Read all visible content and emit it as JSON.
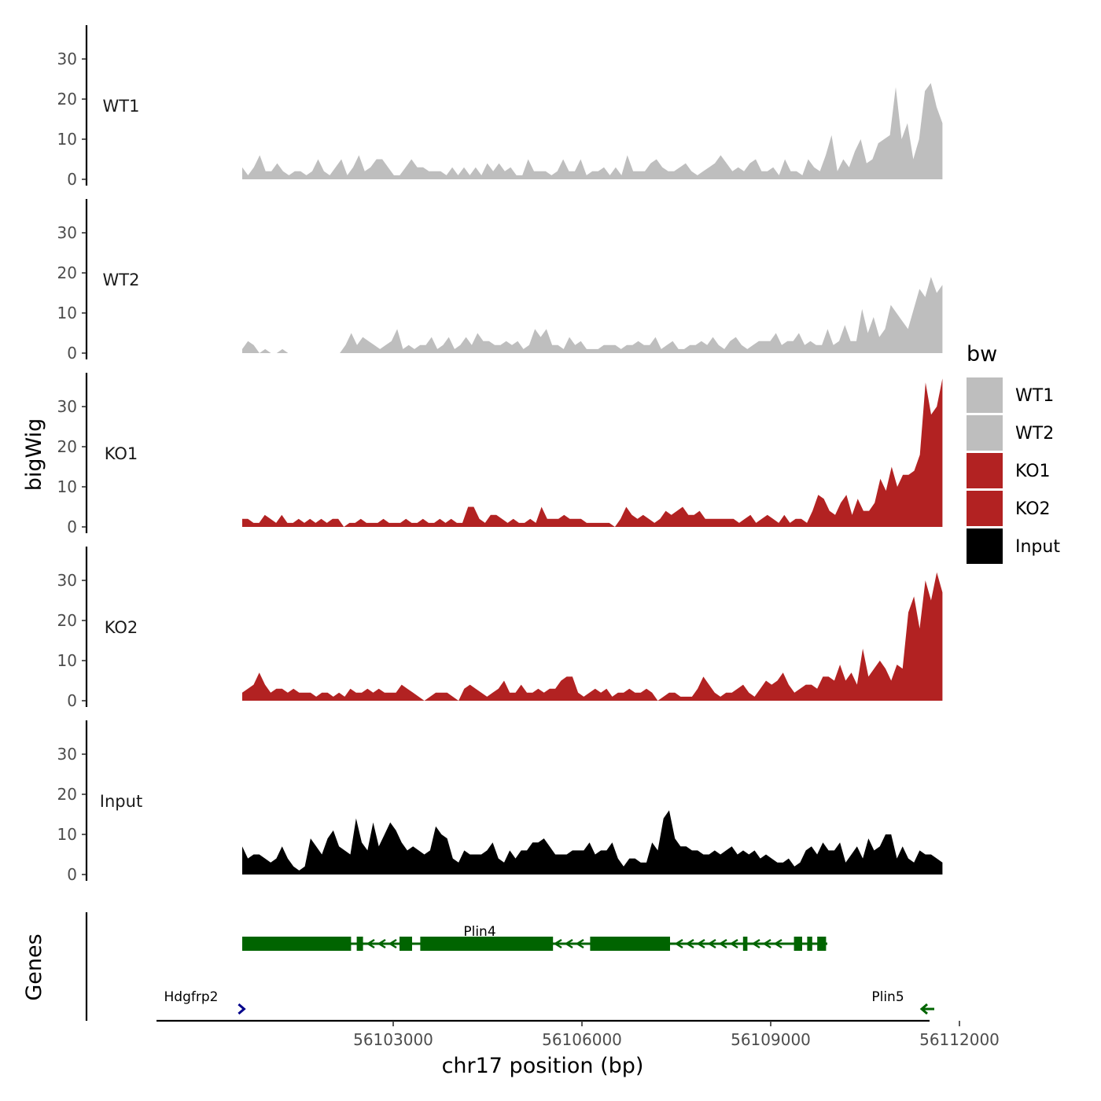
{
  "chart_data": {
    "type": "area",
    "ylabel": "bigWig",
    "xlabel": "chr17 position (bp)",
    "ylim": [
      0,
      37
    ],
    "y_ticks": [
      "0",
      "10",
      "20",
      "30"
    ],
    "x_range": [
      56100000,
      56112300
    ],
    "x_ticks": [
      {
        "value": 56103000,
        "label": "56103000"
      },
      {
        "value": 56106000,
        "label": "56106000"
      },
      {
        "value": 56109000,
        "label": "56109000"
      },
      {
        "value": 56112000,
        "label": "56112000"
      }
    ],
    "x_start": 56100600,
    "x_end": 56111730,
    "legend": {
      "title": "bw",
      "entries": [
        {
          "label": "WT1",
          "color": "#bebebe"
        },
        {
          "label": "WT2",
          "color": "#bebebe"
        },
        {
          "label": "KO1",
          "color": "#b22222"
        },
        {
          "label": "KO2",
          "color": "#b22222"
        },
        {
          "label": "Input",
          "color": "#000000"
        }
      ]
    },
    "series": [
      {
        "name": "WT1",
        "color": "#bebebe",
        "values": [
          3,
          1,
          3,
          6,
          2,
          2,
          4,
          2,
          1,
          2,
          2,
          1,
          2,
          5,
          2,
          1,
          3,
          5,
          1,
          3,
          6,
          2,
          3,
          5,
          5,
          3,
          1,
          1,
          3,
          5,
          3,
          3,
          2,
          2,
          2,
          1,
          3,
          1,
          3,
          1,
          3,
          1,
          4,
          2,
          4,
          2,
          3,
          1,
          1,
          5,
          2,
          2,
          2,
          1,
          2,
          5,
          2,
          2,
          5,
          1,
          2,
          2,
          3,
          1,
          3,
          1,
          6,
          2,
          2,
          2,
          4,
          5,
          3,
          2,
          2,
          3,
          4,
          2,
          1,
          2,
          3,
          4,
          6,
          4,
          2,
          3,
          2,
          4,
          5,
          2,
          2,
          3,
          1,
          5,
          2,
          2,
          1,
          5,
          3,
          2,
          6,
          11,
          2,
          5,
          3,
          7,
          10,
          4,
          5,
          9,
          10,
          11,
          23,
          10,
          14,
          5,
          10,
          22,
          24,
          18,
          14
        ]
      },
      {
        "name": "WT2",
        "color": "#bebebe",
        "values": [
          1,
          3,
          2,
          0,
          1,
          0,
          0,
          1,
          0,
          0,
          0,
          0,
          0,
          0,
          0,
          0,
          0,
          0,
          2,
          5,
          2,
          4,
          3,
          2,
          1,
          2,
          3,
          6,
          1,
          2,
          1,
          2,
          2,
          4,
          1,
          2,
          4,
          1,
          2,
          4,
          2,
          5,
          3,
          3,
          2,
          2,
          3,
          2,
          3,
          1,
          2,
          6,
          4,
          6,
          2,
          2,
          1,
          4,
          2,
          3,
          1,
          1,
          1,
          2,
          2,
          2,
          1,
          2,
          2,
          3,
          2,
          2,
          4,
          1,
          2,
          3,
          1,
          1,
          2,
          2,
          3,
          2,
          4,
          2,
          1,
          3,
          4,
          2,
          1,
          2,
          3,
          3,
          3,
          5,
          2,
          3,
          3,
          5,
          2,
          3,
          2,
          2,
          6,
          2,
          3,
          7,
          3,
          3,
          11,
          5,
          9,
          4,
          6,
          12,
          10,
          8,
          6,
          11,
          16,
          14,
          19,
          15,
          17
        ]
      },
      {
        "name": "KO1",
        "color": "#b22222",
        "values": [
          2,
          2,
          1,
          1,
          3,
          2,
          1,
          3,
          1,
          1,
          2,
          1,
          2,
          1,
          2,
          1,
          2,
          2,
          0,
          1,
          1,
          2,
          1,
          1,
          1,
          2,
          1,
          1,
          1,
          2,
          1,
          1,
          2,
          1,
          1,
          2,
          1,
          2,
          1,
          1,
          5,
          5,
          2,
          1,
          3,
          3,
          2,
          1,
          2,
          1,
          1,
          2,
          1,
          5,
          2,
          2,
          2,
          3,
          2,
          2,
          2,
          1,
          1,
          1,
          1,
          1,
          0,
          2,
          5,
          3,
          2,
          3,
          2,
          1,
          2,
          4,
          3,
          4,
          5,
          3,
          3,
          4,
          2,
          2,
          2,
          2,
          2,
          2,
          1,
          2,
          3,
          1,
          2,
          3,
          2,
          1,
          3,
          1,
          2,
          2,
          1,
          4,
          8,
          7,
          4,
          3,
          6,
          8,
          3,
          7,
          4,
          4,
          6,
          12,
          9,
          15,
          10,
          13,
          13,
          14,
          18,
          36,
          28,
          30,
          37
        ]
      },
      {
        "name": "KO2",
        "color": "#b22222",
        "values": [
          2,
          3,
          4,
          7,
          4,
          2,
          3,
          3,
          2,
          3,
          2,
          2,
          2,
          1,
          2,
          2,
          1,
          2,
          1,
          3,
          2,
          2,
          3,
          2,
          3,
          2,
          2,
          2,
          4,
          3,
          2,
          1,
          0,
          1,
          2,
          2,
          2,
          1,
          0,
          3,
          4,
          3,
          2,
          1,
          2,
          3,
          5,
          2,
          2,
          4,
          2,
          2,
          3,
          2,
          3,
          3,
          5,
          6,
          6,
          2,
          1,
          2,
          3,
          2,
          3,
          1,
          2,
          2,
          3,
          2,
          2,
          3,
          2,
          0,
          1,
          2,
          2,
          1,
          1,
          1,
          3,
          6,
          4,
          2,
          1,
          2,
          2,
          3,
          4,
          2,
          1,
          3,
          5,
          4,
          5,
          7,
          4,
          2,
          3,
          4,
          4,
          3,
          6,
          6,
          5,
          9,
          5,
          7,
          4,
          13,
          6,
          8,
          10,
          8,
          5,
          9,
          8,
          22,
          26,
          18,
          30,
          25,
          32,
          27
        ]
      },
      {
        "name": "Input",
        "color": "#000000",
        "values": [
          7,
          4,
          5,
          5,
          4,
          3,
          4,
          7,
          4,
          2,
          1,
          2,
          9,
          7,
          5,
          9,
          11,
          7,
          6,
          5,
          14,
          8,
          6,
          13,
          7,
          10,
          13,
          11,
          8,
          6,
          7,
          6,
          5,
          6,
          12,
          10,
          9,
          4,
          3,
          6,
          5,
          5,
          5,
          6,
          8,
          4,
          3,
          6,
          4,
          6,
          6,
          8,
          8,
          9,
          7,
          5,
          5,
          5,
          6,
          6,
          6,
          8,
          5,
          6,
          6,
          8,
          4,
          2,
          4,
          4,
          3,
          3,
          8,
          6,
          14,
          16,
          9,
          7,
          7,
          6,
          6,
          5,
          5,
          6,
          5,
          6,
          7,
          5,
          6,
          5,
          6,
          4,
          5,
          4,
          3,
          3,
          4,
          2,
          3,
          6,
          7,
          5,
          8,
          6,
          6,
          8,
          3,
          5,
          7,
          4,
          9,
          6,
          7,
          10,
          10,
          4,
          7,
          4,
          3,
          6,
          5,
          5,
          4,
          3
        ]
      }
    ],
    "genes_track": {
      "ylabel": "Genes",
      "genes": [
        {
          "name": "Plin4",
          "strand": "-",
          "start": 56100600,
          "end": 56109900,
          "color": "#006400",
          "exons": [
            [
              56100600,
              56102330
            ],
            [
              56102420,
              56102520
            ],
            [
              56103100,
              56103300
            ],
            [
              56103430,
              56105540
            ],
            [
              56106130,
              56107400
            ],
            [
              56108560,
              56108630
            ],
            [
              56109370,
              56109500
            ],
            [
              56109580,
              56109660
            ],
            [
              56109740,
              56109880
            ]
          ]
        },
        {
          "name": "Hdgfrp2",
          "strand": "+",
          "start": 56100530,
          "end": 56100620,
          "color": "#00008b",
          "exons": []
        },
        {
          "name": "Plin5",
          "strand": "-",
          "start": 56111400,
          "end": 56111600,
          "color": "#006400",
          "exons": []
        }
      ]
    }
  }
}
